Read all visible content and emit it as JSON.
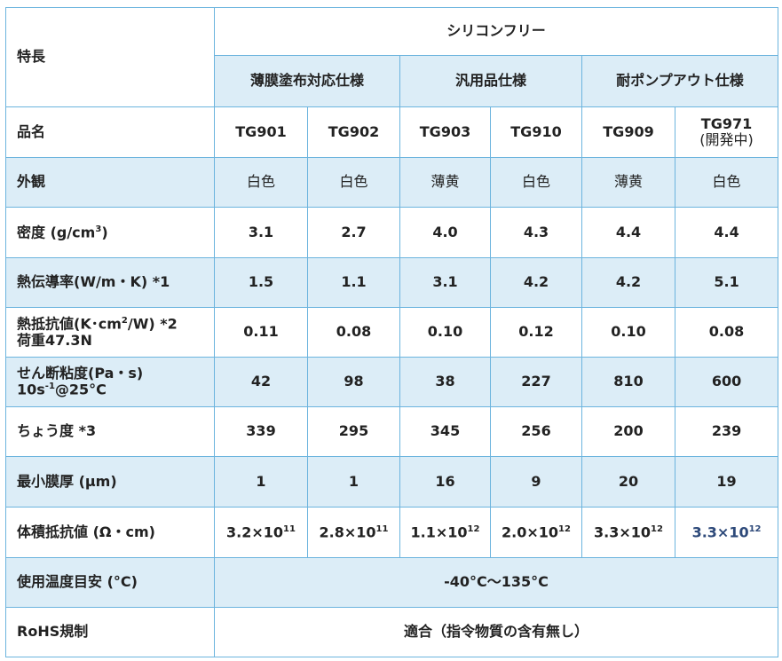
{
  "header": {
    "feature_label": "特長",
    "group": "シリコンフリー",
    "subgroups": [
      "薄膜塗布対応仕様",
      "汎用品仕様",
      "耐ポンプアウト仕様"
    ]
  },
  "rows": [
    {
      "label": "品名",
      "cells": [
        "TG901",
        "TG902",
        "TG903",
        "TG910",
        "TG909",
        [
          [
            "TG971"
          ],
          [
            "(開発中)"
          ]
        ]
      ]
    },
    {
      "label": "外観",
      "cells": [
        "白色",
        "白色",
        "薄黄",
        "白色",
        "薄黄",
        "白色"
      ]
    },
    {
      "label": [
        [
          "密度 (g/cm",
          {
            "sup": "3"
          },
          ")"
        ]
      ],
      "cells": [
        "3.1",
        "2.7",
        "4.0",
        "4.3",
        "4.4",
        "4.4"
      ]
    },
    {
      "label": "熱伝導率(W/m・K) *1",
      "cells": [
        "1.5",
        "1.1",
        "3.1",
        "4.2",
        "4.2",
        "5.1"
      ]
    },
    {
      "label": [
        [
          "熱抵抗値(K･cm",
          {
            "sup": "2"
          },
          "/W) *2"
        ],
        [
          "荷重47.3N"
        ]
      ],
      "cells": [
        "0.11",
        "0.08",
        "0.10",
        "0.12",
        "0.10",
        "0.08"
      ]
    },
    {
      "label": [
        [
          "せん断粘度(Pa・s)"
        ],
        [
          "10s",
          {
            "sup": "-1"
          },
          "@25°C"
        ]
      ],
      "cells": [
        "42",
        "98",
        "38",
        "227",
        "810",
        "600"
      ]
    },
    {
      "label": "ちょう度 *3",
      "cells": [
        "339",
        "295",
        "345",
        "256",
        "200",
        "239"
      ]
    },
    {
      "label": "最小膜厚 (μm)",
      "cells": [
        "1",
        "1",
        "16",
        "9",
        "20",
        "19"
      ]
    },
    {
      "label": "体積抵抗値 (Ω・cm)",
      "cells": [
        [
          [
            "3.2×10",
            {
              "sup": "11"
            }
          ]
        ],
        [
          [
            "2.8×10",
            {
              "sup": "11"
            }
          ]
        ],
        [
          [
            "1.1×10",
            {
              "sup": "12"
            }
          ]
        ],
        [
          [
            "2.0×10",
            {
              "sup": "12"
            }
          ]
        ],
        [
          [
            "3.3×10",
            {
              "sup": "12"
            }
          ]
        ],
        [
          [
            "3.3×10",
            {
              "sup": "12"
            }
          ]
        ]
      ]
    },
    {
      "label": "使用温度目安 (°C)",
      "all": "-40°C～135°C"
    },
    {
      "label": "RoHS規制",
      "all": "適合（指令物質の含有無し）"
    }
  ]
}
